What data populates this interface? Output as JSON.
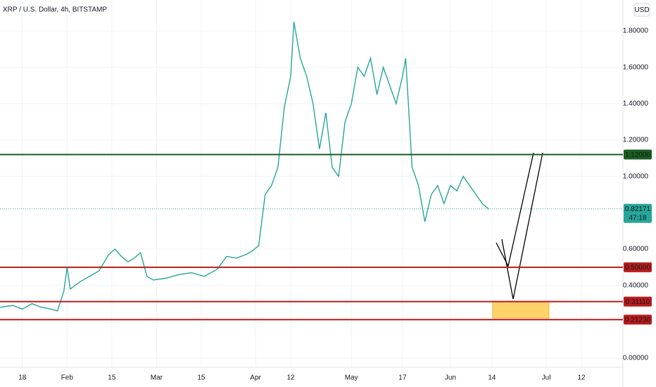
{
  "chart_data": {
    "type": "line",
    "title": "XRP / U.S. Dollar, 4h, BITSTAMP",
    "currency": "USD",
    "x": [
      10,
      14,
      17,
      20,
      23,
      26,
      28,
      30,
      31,
      32,
      35,
      38,
      41,
      44,
      46,
      48,
      50,
      52,
      54,
      56,
      58,
      62,
      66,
      70,
      74,
      78,
      81,
      84,
      87,
      89,
      91,
      93,
      95,
      97,
      99,
      101,
      102,
      104,
      106,
      108,
      110,
      112,
      114,
      116,
      118,
      120,
      122,
      124,
      126,
      128,
      130,
      132,
      134,
      136,
      137,
      138,
      139,
      141,
      143,
      145,
      147,
      149,
      151,
      153,
      155,
      157,
      159,
      161,
      163
    ],
    "series": [
      {
        "color": "#26a69a",
        "values": [
          0.28,
          0.29,
          0.27,
          0.3,
          0.28,
          0.27,
          0.26,
          0.37,
          0.5,
          0.38,
          0.42,
          0.45,
          0.48,
          0.57,
          0.6,
          0.56,
          0.53,
          0.55,
          0.58,
          0.45,
          0.43,
          0.44,
          0.46,
          0.47,
          0.45,
          0.49,
          0.56,
          0.55,
          0.57,
          0.59,
          0.62,
          0.9,
          0.95,
          1.05,
          1.38,
          1.55,
          1.85,
          1.65,
          1.55,
          1.4,
          1.15,
          1.35,
          1.05,
          1.0,
          1.3,
          1.4,
          1.6,
          1.55,
          1.65,
          1.45,
          1.6,
          1.5,
          1.4,
          1.55,
          1.65,
          1.35,
          1.05,
          0.95,
          0.75,
          0.9,
          0.95,
          0.85,
          0.95,
          0.92,
          1.0,
          0.95,
          0.9,
          0.85,
          0.82
        ]
      }
    ],
    "xlim": [
      10,
      205
    ],
    "ylim": [
      -0.05,
      1.97
    ],
    "xticks": [
      {
        "value": 17,
        "label": "18"
      },
      {
        "value": 31,
        "label": "Feb"
      },
      {
        "value": 45,
        "label": "15"
      },
      {
        "value": 59,
        "label": "Mar"
      },
      {
        "value": 73,
        "label": "15"
      },
      {
        "value": 90,
        "label": "Apr"
      },
      {
        "value": 101,
        "label": "12"
      },
      {
        "value": 120,
        "label": "May"
      },
      {
        "value": 136,
        "label": "17"
      },
      {
        "value": 151,
        "label": "Jun"
      },
      {
        "value": 164,
        "label": "14"
      },
      {
        "value": 181,
        "label": "Jul"
      },
      {
        "value": 192,
        "label": "12"
      }
    ],
    "yticks": [
      {
        "value": 0,
        "label": "0.00000"
      },
      {
        "value": 0.4,
        "label": "0.40000"
      },
      {
        "value": 0.6,
        "label": "0.60000"
      },
      {
        "value": 1.0,
        "label": "1.00000"
      },
      {
        "value": 1.2,
        "label": "1.20000"
      },
      {
        "value": 1.4,
        "label": "1.40000"
      },
      {
        "value": 1.6,
        "label": "1.60000"
      },
      {
        "value": 1.8,
        "label": "1.80000"
      }
    ],
    "grid": true,
    "levels": [
      {
        "value": 1.12,
        "label": "1.12000",
        "color": "#1b5e20"
      },
      {
        "value": 0.5,
        "label": "0.50000",
        "color": "#b71c1c"
      },
      {
        "value": 0.3111,
        "label": "0.31110",
        "color": "#b71c1c"
      },
      {
        "value": 0.2123,
        "label": "0.21230",
        "color": "#b71c1c"
      }
    ],
    "last_price": {
      "value": 0.82171,
      "label": "0.82171",
      "countdown": "47:18",
      "color": "#26a69a"
    }
  }
}
